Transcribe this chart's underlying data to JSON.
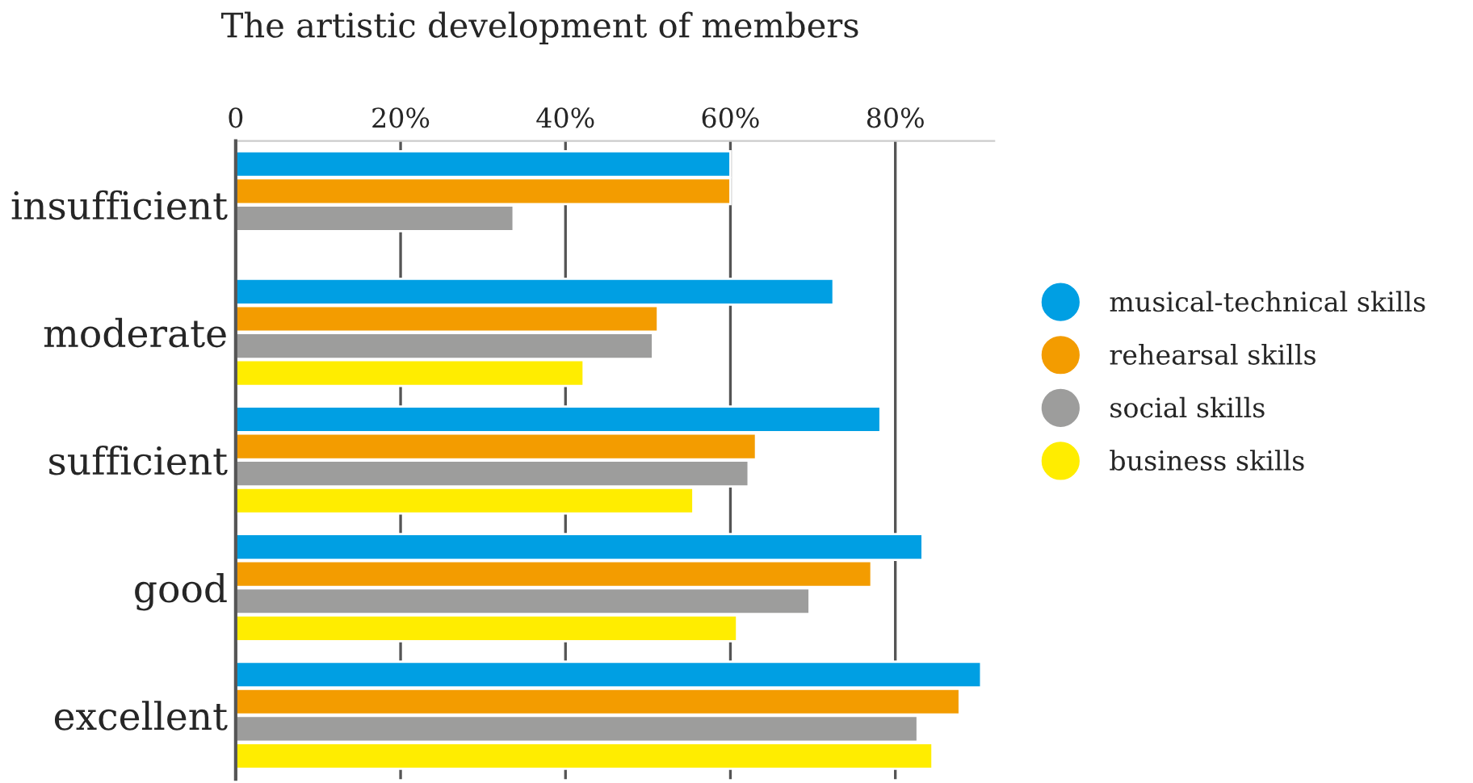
{
  "chart_data": {
    "type": "bar",
    "orientation": "horizontal",
    "title": "The artistic development of members",
    "categories": [
      "insufficient",
      "moderate",
      "sufficient",
      "good",
      "excellent"
    ],
    "series": [
      {
        "name": "musical-technical skills",
        "color": "#009fe3",
        "values": [
          60,
          72.5,
          78.2,
          83.3,
          90.4
        ]
      },
      {
        "name": "rehearsal skills",
        "color": "#f39c00",
        "values": [
          60,
          51.2,
          63.1,
          77.1,
          87.8
        ]
      },
      {
        "name": "social skills",
        "color": "#9d9d9c",
        "values": [
          33.7,
          50.6,
          62.2,
          69.6,
          82.7
        ]
      },
      {
        "name": "business skills",
        "color": "#ffed00",
        "values": [
          null,
          42.2,
          55.5,
          60.8,
          84.5
        ]
      }
    ],
    "xlim": [
      0,
      92
    ],
    "xticks": [
      0,
      {
        "value": 20,
        "label": "20%"
      },
      {
        "value": 40,
        "label": "40%"
      },
      {
        "value": 60,
        "label": "60%"
      },
      {
        "value": 80,
        "label": "80%"
      }
    ],
    "grid": "x",
    "legend": "right",
    "marker": "circle"
  }
}
